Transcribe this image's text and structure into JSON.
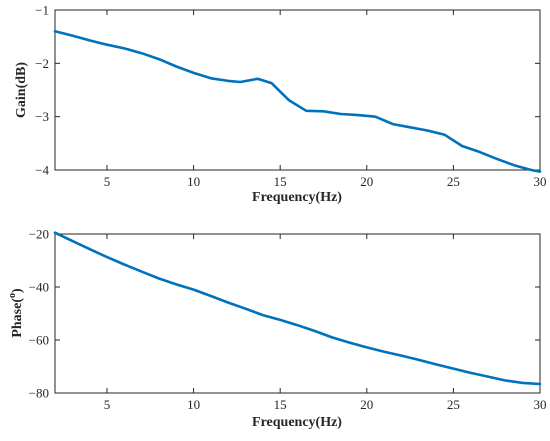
{
  "chart_data": [
    {
      "type": "line",
      "xlabel": "Frequency(Hz)",
      "ylabel": "Gain(dB)",
      "xlim": [
        2,
        30
      ],
      "ylim": [
        -4,
        -1
      ],
      "xticks": [
        5,
        10,
        15,
        20,
        25,
        30
      ],
      "yticks": [
        -4,
        -3,
        -2,
        -1
      ],
      "grid": false,
      "line_color": "#0072BD",
      "series": [
        {
          "x": [
            2,
            3,
            4,
            5,
            6,
            7,
            8,
            9,
            10,
            11,
            12,
            12.7,
            13.7,
            14.5,
            15.5,
            16.5,
            17.5,
            18.5,
            19.5,
            20.5,
            21.5,
            22.5,
            23.5,
            24.5,
            25.5,
            26.5,
            27.5,
            28.5,
            29.5,
            30
          ],
          "y": [
            -1.4,
            -1.48,
            -1.57,
            -1.65,
            -1.72,
            -1.81,
            -1.92,
            -2.06,
            -2.18,
            -2.28,
            -2.33,
            -2.35,
            -2.29,
            -2.37,
            -2.69,
            -2.89,
            -2.9,
            -2.95,
            -2.97,
            -3.0,
            -3.14,
            -3.2,
            -3.26,
            -3.34,
            -3.55,
            -3.66,
            -3.79,
            -3.91,
            -4.0,
            -4.03
          ]
        }
      ]
    },
    {
      "type": "line",
      "xlabel": "Frequency(Hz)",
      "ylabel": "Phase(",
      "ylabel_sup": "o",
      "ylabel_end": ")",
      "xlim": [
        2,
        30
      ],
      "ylim": [
        -80,
        -20
      ],
      "xticks": [
        5,
        10,
        15,
        20,
        25,
        30
      ],
      "yticks": [
        -80,
        -60,
        -40,
        -20
      ],
      "grid": false,
      "line_color": "#0072BD",
      "series": [
        {
          "x": [
            2,
            3,
            4,
            5,
            6,
            7,
            8,
            9,
            10,
            11,
            12,
            13,
            14,
            15,
            16,
            17,
            18,
            19,
            20,
            21,
            22,
            23,
            24,
            25,
            26,
            27,
            28,
            29,
            30
          ],
          "y": [
            -19.5,
            -22.6,
            -25.7,
            -28.7,
            -31.5,
            -34.2,
            -36.8,
            -39.0,
            -41.0,
            -43.4,
            -45.9,
            -48.2,
            -50.6,
            -52.4,
            -54.4,
            -56.6,
            -59.0,
            -61.0,
            -62.8,
            -64.4,
            -65.9,
            -67.5,
            -69.2,
            -70.8,
            -72.4,
            -73.8,
            -75.3,
            -76.2,
            -76.6
          ]
        }
      ]
    }
  ]
}
